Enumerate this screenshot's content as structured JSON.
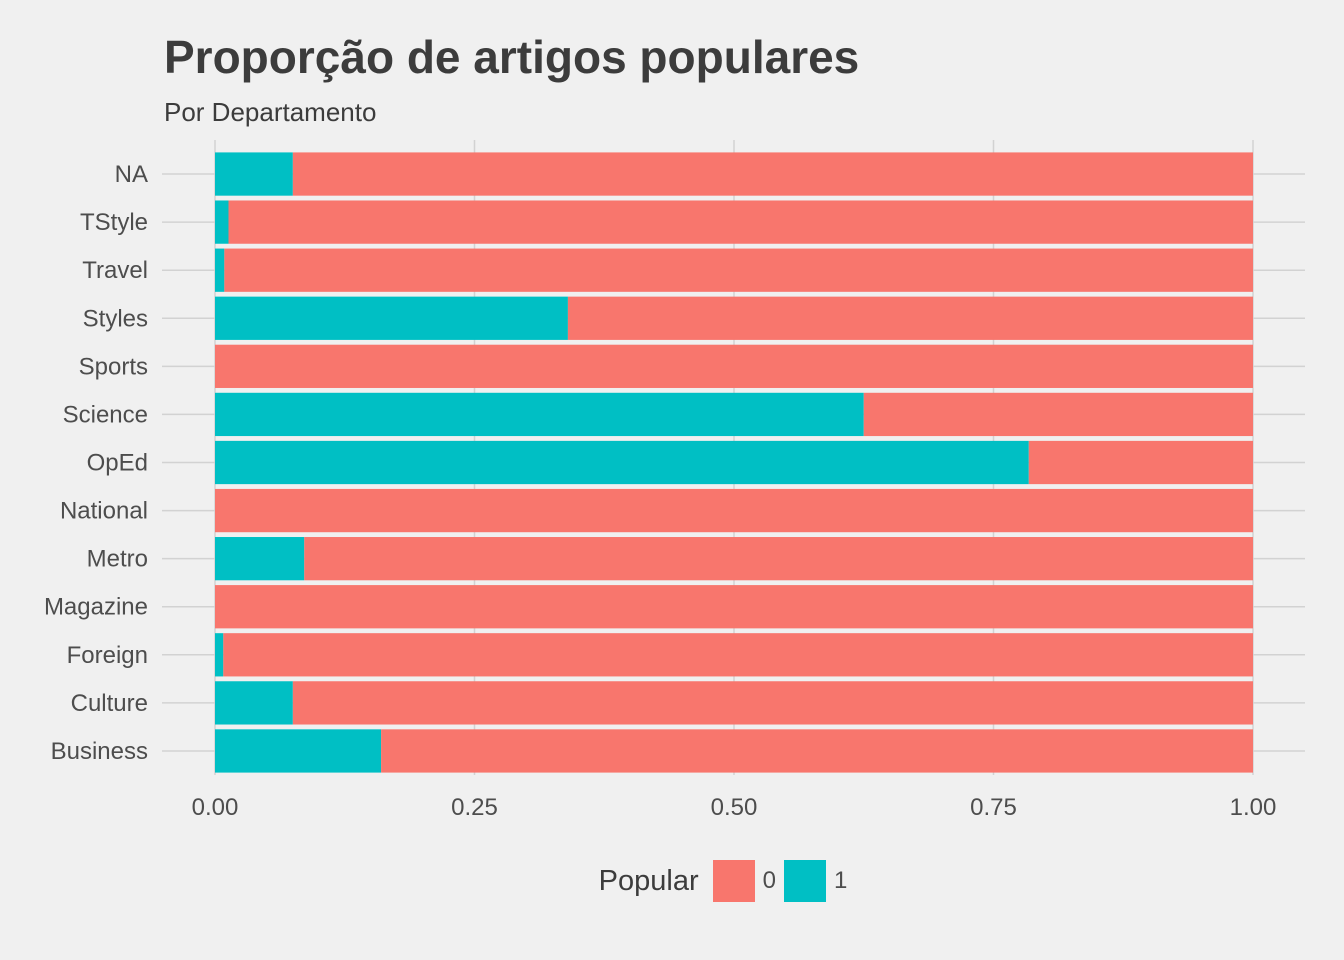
{
  "chart_data": {
    "type": "bar",
    "orientation": "horizontal",
    "stacked": true,
    "title": "Proporção de artigos populares",
    "subtitle": "Por Departamento",
    "categories": [
      "Business",
      "Culture",
      "Foreign",
      "Magazine",
      "Metro",
      "National",
      "OpEd",
      "Science",
      "Sports",
      "Styles",
      "Travel",
      "TStyle",
      "NA"
    ],
    "series": [
      {
        "name": "1",
        "color": "#00bfc4",
        "values": [
          0.16,
          0.075,
          0.008,
          0.0,
          0.086,
          0.0,
          0.784,
          0.625,
          0.0,
          0.34,
          0.009,
          0.013,
          0.075
        ]
      },
      {
        "name": "0",
        "color": "#f8766d",
        "values": [
          0.84,
          0.925,
          0.992,
          1.0,
          0.914,
          1.0,
          0.216,
          0.375,
          1.0,
          0.66,
          0.991,
          0.987,
          0.925
        ]
      }
    ],
    "xlim": [
      0,
      1
    ],
    "xticks": [
      "0.00",
      "0.25",
      "0.50",
      "0.75",
      "1.00"
    ],
    "grid": true,
    "legend": {
      "title": "Popular",
      "position": "bottom",
      "entries": [
        {
          "label": "0",
          "color": "#f8766d"
        },
        {
          "label": "1",
          "color": "#00bfc4"
        }
      ]
    }
  }
}
